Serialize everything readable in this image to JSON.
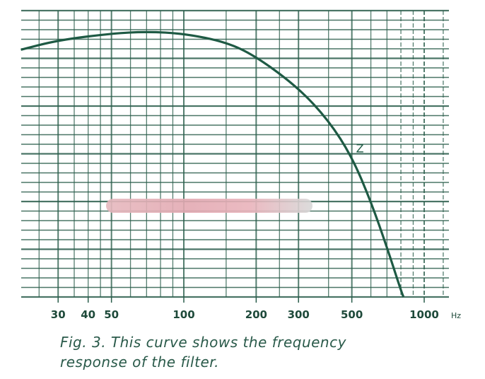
{
  "chart_data": {
    "type": "line",
    "title": "",
    "xlabel": "Hz",
    "ylabel": "",
    "x_scale": "log",
    "xlim": [
      21,
      1250
    ],
    "ylim": [
      0,
      30
    ],
    "grid": true,
    "x_ticks": [
      30,
      40,
      50,
      100,
      200,
      300,
      500,
      1000
    ],
    "x_tick_labels": [
      "30",
      "40",
      "50",
      "100",
      "200",
      "300",
      "500",
      "1000"
    ],
    "x_unit_label": "Hz",
    "series": [
      {
        "name": "frequency response",
        "x": [
          21,
          30,
          50,
          70,
          100,
          150,
          200,
          300,
          400,
          500,
          600,
          700,
          800,
          820
        ],
        "y": [
          25.9,
          26.9,
          27.6,
          27.8,
          27.6,
          26.7,
          25.2,
          21.9,
          18.5,
          14.7,
          10,
          5.2,
          0.7,
          0
        ]
      }
    ],
    "annotations": [
      {
        "text": "Z",
        "x": 500,
        "y": 14.7
      }
    ],
    "colors": {
      "ink": "#1e5a44",
      "grid": "#2b5e4c"
    }
  },
  "caption": {
    "line1": "Fig. 3. This curve shows the frequency",
    "line2": "response of the filter."
  }
}
